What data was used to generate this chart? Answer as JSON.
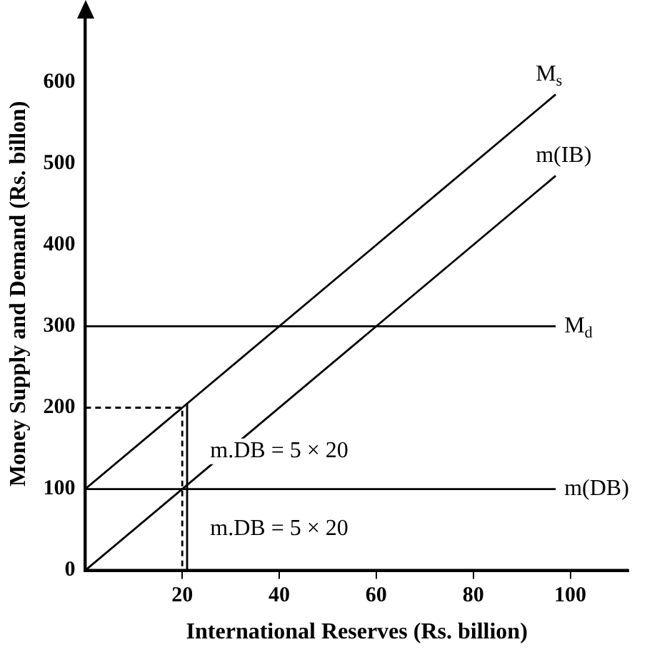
{
  "chart_data": {
    "type": "line",
    "xlabel": "International Reserves (Rs. billion)",
    "ylabel": "Money Supply and Demand (Rs. billon)",
    "xlim": [
      0,
      112
    ],
    "ylim": [
      0,
      680
    ],
    "xticks": [
      20,
      40,
      60,
      80,
      100
    ],
    "yticks": [
      0,
      100,
      200,
      300,
      400,
      500,
      600
    ],
    "grid": false,
    "legend": false,
    "marker": "none",
    "series": [
      {
        "name": "M$_{s}$",
        "color": "#000000",
        "x": [
          0,
          97
        ],
        "values": [
          100,
          585
        ]
      },
      {
        "name": "m(IB)",
        "color": "#000000",
        "x": [
          0,
          97
        ],
        "values": [
          0,
          485
        ]
      },
      {
        "name": "M$_{d}$",
        "color": "#000000",
        "x": [
          0,
          97
        ],
        "values": [
          300,
          300
        ]
      },
      {
        "name": "m(DB)",
        "color": "#000000",
        "x": [
          0,
          97
        ],
        "values": [
          100,
          100
        ]
      },
      {
        "color": "#000000",
        "line_style": "dashed",
        "x": [
          0,
          20,
          20
        ],
        "values": [
          200,
          200,
          0
        ]
      },
      {
        "color": "#000000",
        "x": [
          21,
          21
        ],
        "values": [
          0,
          205
        ]
      }
    ],
    "annotations": [
      "m.DB = 5 × 20",
      "m.DB = 5 × 20"
    ]
  }
}
